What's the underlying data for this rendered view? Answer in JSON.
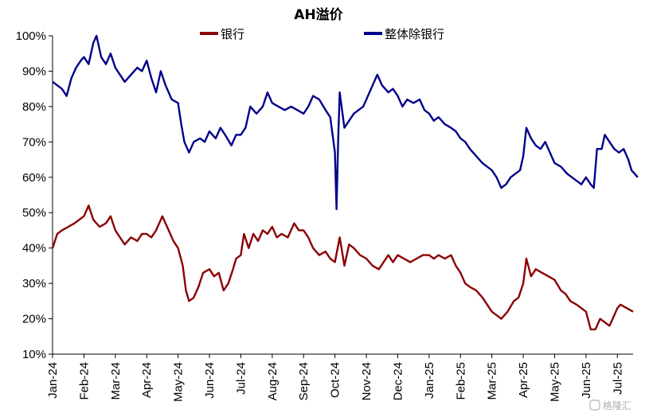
{
  "chart_data": {
    "type": "line",
    "title": "AH溢价",
    "xlabel": "",
    "ylabel": "",
    "ylim": [
      10,
      100
    ],
    "y_ticks": [
      "100%",
      "90%",
      "80%",
      "70%",
      "60%",
      "50%",
      "40%",
      "30%",
      "20%",
      "10%"
    ],
    "categories": [
      "Jan-24",
      "Feb-24",
      "Mar-24",
      "Apr-24",
      "May-24",
      "Jun-24",
      "Jul-24",
      "Aug-24",
      "Sep-24",
      "Oct-24",
      "Nov-24",
      "Dec-24",
      "Jan-25",
      "Feb-25",
      "Mar-25",
      "Apr-25",
      "May-25",
      "Jun-25",
      "Jul-25"
    ],
    "legend": "top-center",
    "grid": false,
    "series": [
      {
        "name": "银行",
        "color": "#8b0000",
        "points": [
          [
            0.0,
            40
          ],
          [
            0.15,
            44
          ],
          [
            0.3,
            45
          ],
          [
            0.5,
            46
          ],
          [
            0.7,
            47
          ],
          [
            0.85,
            48
          ],
          [
            1.0,
            49
          ],
          [
            1.15,
            52
          ],
          [
            1.3,
            48
          ],
          [
            1.5,
            46
          ],
          [
            1.7,
            47
          ],
          [
            1.85,
            49
          ],
          [
            2.0,
            45
          ],
          [
            2.15,
            43
          ],
          [
            2.3,
            41
          ],
          [
            2.5,
            43
          ],
          [
            2.7,
            42
          ],
          [
            2.85,
            44
          ],
          [
            3.0,
            44
          ],
          [
            3.15,
            43
          ],
          [
            3.3,
            45
          ],
          [
            3.5,
            49
          ],
          [
            3.7,
            45
          ],
          [
            3.85,
            42
          ],
          [
            4.0,
            40
          ],
          [
            4.15,
            35
          ],
          [
            4.25,
            28
          ],
          [
            4.35,
            25
          ],
          [
            4.5,
            26
          ],
          [
            4.65,
            29
          ],
          [
            4.8,
            33
          ],
          [
            5.0,
            34
          ],
          [
            5.15,
            32
          ],
          [
            5.3,
            33
          ],
          [
            5.45,
            28
          ],
          [
            5.6,
            30
          ],
          [
            5.75,
            34
          ],
          [
            5.85,
            37
          ],
          [
            6.0,
            38
          ],
          [
            6.1,
            44
          ],
          [
            6.25,
            40
          ],
          [
            6.4,
            44
          ],
          [
            6.55,
            42
          ],
          [
            6.7,
            45
          ],
          [
            6.85,
            44
          ],
          [
            7.0,
            46
          ],
          [
            7.15,
            43
          ],
          [
            7.3,
            44
          ],
          [
            7.5,
            43
          ],
          [
            7.7,
            47
          ],
          [
            7.85,
            45
          ],
          [
            8.0,
            45
          ],
          [
            8.15,
            43
          ],
          [
            8.3,
            40
          ],
          [
            8.5,
            38
          ],
          [
            8.7,
            39
          ],
          [
            8.85,
            37
          ],
          [
            9.0,
            36
          ],
          [
            9.15,
            43
          ],
          [
            9.3,
            35
          ],
          [
            9.45,
            41
          ],
          [
            9.6,
            40
          ],
          [
            9.8,
            38
          ],
          [
            10.0,
            37
          ],
          [
            10.2,
            35
          ],
          [
            10.4,
            34
          ],
          [
            10.55,
            36
          ],
          [
            10.7,
            38
          ],
          [
            10.85,
            36
          ],
          [
            11.0,
            38
          ],
          [
            11.2,
            37
          ],
          [
            11.4,
            36
          ],
          [
            11.6,
            37
          ],
          [
            11.8,
            38
          ],
          [
            12.0,
            38
          ],
          [
            12.15,
            37
          ],
          [
            12.3,
            38
          ],
          [
            12.5,
            37
          ],
          [
            12.7,
            38
          ],
          [
            12.85,
            35
          ],
          [
            13.0,
            33
          ],
          [
            13.15,
            30
          ],
          [
            13.3,
            29
          ],
          [
            13.5,
            28
          ],
          [
            13.7,
            26
          ],
          [
            13.85,
            24
          ],
          [
            14.0,
            22
          ],
          [
            14.15,
            21
          ],
          [
            14.3,
            20
          ],
          [
            14.5,
            22
          ],
          [
            14.7,
            25
          ],
          [
            14.85,
            26
          ],
          [
            15.0,
            30
          ],
          [
            15.1,
            37
          ],
          [
            15.25,
            32
          ],
          [
            15.4,
            34
          ],
          [
            15.6,
            33
          ],
          [
            15.8,
            32
          ],
          [
            16.0,
            31
          ],
          [
            16.2,
            28
          ],
          [
            16.35,
            27
          ],
          [
            16.5,
            25
          ],
          [
            16.7,
            24
          ],
          [
            16.85,
            23
          ],
          [
            17.0,
            22
          ],
          [
            17.15,
            17
          ],
          [
            17.3,
            17
          ],
          [
            17.45,
            20
          ],
          [
            17.6,
            19
          ],
          [
            17.75,
            18
          ],
          [
            17.9,
            21
          ],
          [
            18.0,
            23
          ],
          [
            18.1,
            24
          ],
          [
            18.3,
            23
          ],
          [
            18.5,
            22
          ]
        ]
      },
      {
        "name": "整体除银行",
        "color": "#00008b",
        "points": [
          [
            0.0,
            87
          ],
          [
            0.15,
            86
          ],
          [
            0.3,
            85
          ],
          [
            0.45,
            83
          ],
          [
            0.6,
            88
          ],
          [
            0.75,
            91
          ],
          [
            0.9,
            93
          ],
          [
            1.0,
            94
          ],
          [
            1.15,
            92
          ],
          [
            1.3,
            98
          ],
          [
            1.4,
            100
          ],
          [
            1.55,
            94
          ],
          [
            1.7,
            92
          ],
          [
            1.85,
            95
          ],
          [
            2.0,
            91
          ],
          [
            2.15,
            89
          ],
          [
            2.3,
            87
          ],
          [
            2.5,
            89
          ],
          [
            2.7,
            91
          ],
          [
            2.85,
            90
          ],
          [
            3.0,
            93
          ],
          [
            3.15,
            88
          ],
          [
            3.3,
            84
          ],
          [
            3.45,
            90
          ],
          [
            3.6,
            86
          ],
          [
            3.8,
            82
          ],
          [
            4.0,
            81
          ],
          [
            4.1,
            75
          ],
          [
            4.2,
            70
          ],
          [
            4.35,
            67
          ],
          [
            4.5,
            70
          ],
          [
            4.7,
            71
          ],
          [
            4.85,
            70
          ],
          [
            5.0,
            73
          ],
          [
            5.2,
            71
          ],
          [
            5.35,
            74
          ],
          [
            5.5,
            72
          ],
          [
            5.7,
            69
          ],
          [
            5.85,
            72
          ],
          [
            6.0,
            72
          ],
          [
            6.15,
            74
          ],
          [
            6.3,
            80
          ],
          [
            6.5,
            78
          ],
          [
            6.7,
            80
          ],
          [
            6.85,
            84
          ],
          [
            7.0,
            81
          ],
          [
            7.2,
            80
          ],
          [
            7.4,
            79
          ],
          [
            7.6,
            80
          ],
          [
            7.8,
            79
          ],
          [
            8.0,
            78
          ],
          [
            8.15,
            80
          ],
          [
            8.3,
            83
          ],
          [
            8.5,
            82
          ],
          [
            8.7,
            79
          ],
          [
            8.85,
            77
          ],
          [
            9.0,
            67
          ],
          [
            9.05,
            51
          ],
          [
            9.1,
            70
          ],
          [
            9.15,
            84
          ],
          [
            9.3,
            74
          ],
          [
            9.45,
            76
          ],
          [
            9.6,
            78
          ],
          [
            9.75,
            79
          ],
          [
            9.9,
            80
          ],
          [
            10.0,
            82
          ],
          [
            10.2,
            86
          ],
          [
            10.35,
            89
          ],
          [
            10.5,
            86
          ],
          [
            10.7,
            84
          ],
          [
            10.85,
            85
          ],
          [
            11.0,
            83
          ],
          [
            11.15,
            80
          ],
          [
            11.3,
            82
          ],
          [
            11.5,
            81
          ],
          [
            11.7,
            82
          ],
          [
            11.85,
            79
          ],
          [
            12.0,
            78
          ],
          [
            12.15,
            76
          ],
          [
            12.3,
            77
          ],
          [
            12.5,
            75
          ],
          [
            12.7,
            74
          ],
          [
            12.85,
            73
          ],
          [
            13.0,
            71
          ],
          [
            13.15,
            70
          ],
          [
            13.3,
            68
          ],
          [
            13.5,
            66
          ],
          [
            13.7,
            64
          ],
          [
            13.85,
            63
          ],
          [
            14.0,
            62
          ],
          [
            14.15,
            60
          ],
          [
            14.3,
            57
          ],
          [
            14.45,
            58
          ],
          [
            14.6,
            60
          ],
          [
            14.75,
            61
          ],
          [
            14.9,
            62
          ],
          [
            15.0,
            66
          ],
          [
            15.1,
            74
          ],
          [
            15.25,
            71
          ],
          [
            15.4,
            69
          ],
          [
            15.55,
            68
          ],
          [
            15.7,
            70
          ],
          [
            15.85,
            67
          ],
          [
            16.0,
            64
          ],
          [
            16.2,
            63
          ],
          [
            16.4,
            61
          ],
          [
            16.55,
            60
          ],
          [
            16.7,
            59
          ],
          [
            16.85,
            58
          ],
          [
            17.0,
            60
          ],
          [
            17.15,
            58
          ],
          [
            17.25,
            57
          ],
          [
            17.35,
            68
          ],
          [
            17.5,
            68
          ],
          [
            17.6,
            72
          ],
          [
            17.75,
            70
          ],
          [
            17.9,
            68
          ],
          [
            18.05,
            67
          ],
          [
            18.2,
            68
          ],
          [
            18.35,
            65
          ],
          [
            18.45,
            62
          ],
          [
            18.55,
            61
          ],
          [
            18.65,
            60
          ]
        ]
      }
    ],
    "watermark": "格隆汇"
  }
}
